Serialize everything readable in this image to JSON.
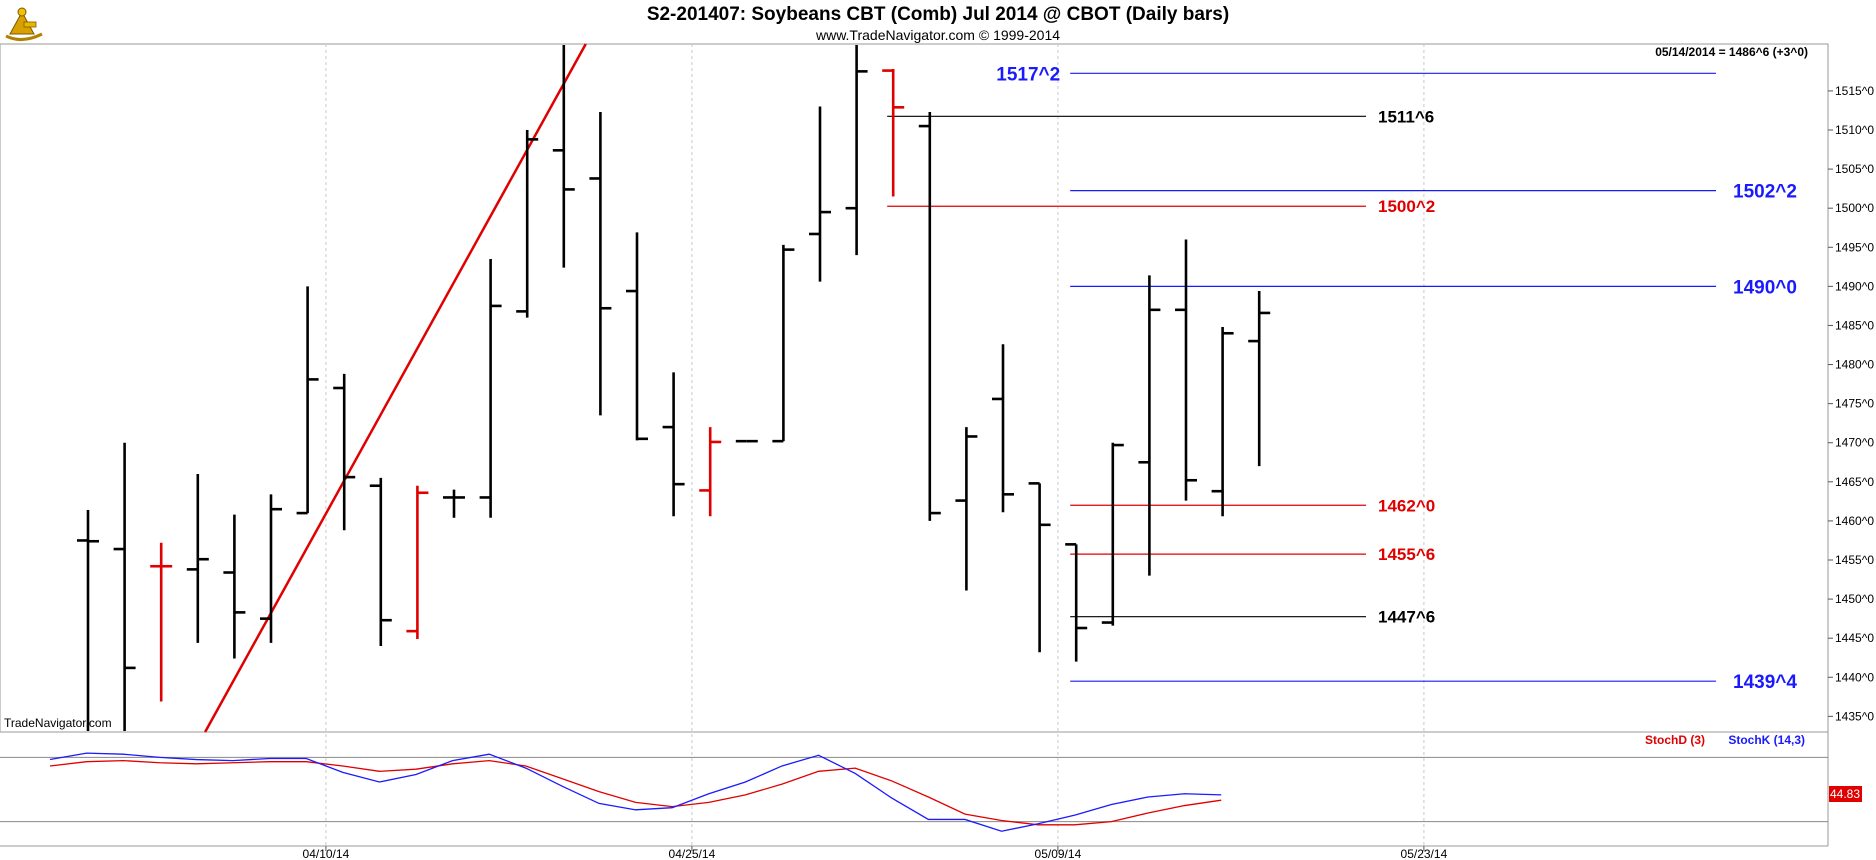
{
  "header": {
    "title": "S2-201407:  Soybeans CBT (Comb) Jul 2014 @ CBOT  (Daily bars)",
    "subtitle": "www.TradeNavigator.com © 1999-2014",
    "last_price_label": "05/14/2014 = 1486^6 (+3^0)",
    "watermark": "TradeNavigator.com",
    "logo": "trade-navigator-sextant-logo"
  },
  "colors": {
    "background": "#ffffff",
    "up_bar": "#000000",
    "down_bar": "#e00000",
    "blue_level": "#1a1aff",
    "red_level": "#e00000",
    "black_level": "#000000",
    "trendline": "#e00000",
    "stochK": "#1a1aff",
    "stochD": "#e00000",
    "grid": "#c8c8c8"
  },
  "chart_data": [
    {
      "type": "ohlc",
      "title": "S2-201407:  Soybeans CBT (Comb) Jul 2014 @ CBOT  (Daily bars)",
      "ylim": [
        1433,
        1521
      ],
      "y_ticks": [
        {
          "v": 1435,
          "label": "1435^0"
        },
        {
          "v": 1440,
          "label": "1440^0"
        },
        {
          "v": 1445,
          "label": "1445^0"
        },
        {
          "v": 1450,
          "label": "1450^0"
        },
        {
          "v": 1455,
          "label": "1455^0"
        },
        {
          "v": 1460,
          "label": "1460^0"
        },
        {
          "v": 1465,
          "label": "1465^0"
        },
        {
          "v": 1470,
          "label": "1470^0"
        },
        {
          "v": 1475,
          "label": "1475^0"
        },
        {
          "v": 1480,
          "label": "1480^0"
        },
        {
          "v": 1485,
          "label": "1485^0"
        },
        {
          "v": 1490,
          "label": "1490^0"
        },
        {
          "v": 1495,
          "label": "1495^0"
        },
        {
          "v": 1500,
          "label": "1500^0"
        },
        {
          "v": 1505,
          "label": "1505^0"
        },
        {
          "v": 1510,
          "label": "1510^0"
        },
        {
          "v": 1515,
          "label": "1515^0"
        }
      ],
      "x_labels": [
        {
          "i": 6.5,
          "label": "04/10/14"
        },
        {
          "i": 16.5,
          "label": "04/25/14"
        },
        {
          "i": 26.5,
          "label": "05/09/14"
        },
        {
          "i": 36.5,
          "label": "05/23/14"
        }
      ],
      "bars": [
        {
          "o": 1457.5,
          "h": 1461.4,
          "l": 1433.0,
          "c": 1457.4,
          "dir": "up"
        },
        {
          "o": 1456.4,
          "h": 1470.0,
          "l": 1433.0,
          "c": 1441.2,
          "dir": "up"
        },
        {
          "o": 1454.2,
          "h": 1457.2,
          "l": 1436.9,
          "c": 1454.2,
          "dir": "down"
        },
        {
          "o": 1453.8,
          "h": 1466.0,
          "l": 1444.4,
          "c": 1455.1,
          "dir": "up"
        },
        {
          "o": 1453.4,
          "h": 1460.8,
          "l": 1442.4,
          "c": 1448.3,
          "dir": "up"
        },
        {
          "o": 1447.5,
          "h": 1463.4,
          "l": 1444.4,
          "c": 1461.5,
          "dir": "up"
        },
        {
          "o": 1461.0,
          "h": 1490.0,
          "l": 1461.0,
          "c": 1478.1,
          "dir": "up"
        },
        {
          "o": 1477.0,
          "h": 1478.8,
          "l": 1458.8,
          "c": 1465.6,
          "dir": "up"
        },
        {
          "o": 1464.5,
          "h": 1465.5,
          "l": 1444.0,
          "c": 1447.3,
          "dir": "up"
        },
        {
          "o": 1445.9,
          "h": 1464.5,
          "l": 1444.9,
          "c": 1463.6,
          "dir": "down"
        },
        {
          "o": 1463.0,
          "h": 1464.0,
          "l": 1460.4,
          "c": 1463.0,
          "dir": "up"
        },
        {
          "o": 1463.0,
          "h": 1493.5,
          "l": 1460.4,
          "c": 1487.5,
          "dir": "up"
        },
        {
          "o": 1486.8,
          "h": 1510.0,
          "l": 1486.0,
          "c": 1508.8,
          "dir": "up"
        },
        {
          "o": 1507.4,
          "h": 1521.0,
          "l": 1492.4,
          "c": 1502.4,
          "dir": "up"
        },
        {
          "o": 1503.8,
          "h": 1512.3,
          "l": 1473.5,
          "c": 1487.2,
          "dir": "up"
        },
        {
          "o": 1489.4,
          "h": 1496.9,
          "l": 1470.3,
          "c": 1470.5,
          "dir": "up"
        },
        {
          "o": 1472.0,
          "h": 1479.0,
          "l": 1460.6,
          "c": 1464.7,
          "dir": "up"
        },
        {
          "o": 1463.9,
          "h": 1472.0,
          "l": 1460.6,
          "c": 1470.1,
          "dir": "down"
        },
        {
          "o": 1470.2,
          "h": 1470.2,
          "l": 1470.2,
          "c": 1470.2,
          "dir": "up"
        },
        {
          "o": 1470.2,
          "h": 1495.3,
          "l": 1470.2,
          "c": 1494.7,
          "dir": "up"
        },
        {
          "o": 1496.7,
          "h": 1513.0,
          "l": 1490.6,
          "c": 1499.5,
          "dir": "up"
        },
        {
          "o": 1500.0,
          "h": 1521.0,
          "l": 1494.0,
          "c": 1517.5,
          "dir": "up"
        },
        {
          "o": 1517.6,
          "h": 1517.8,
          "l": 1501.5,
          "c": 1512.9,
          "dir": "down"
        },
        {
          "o": 1510.5,
          "h": 1512.3,
          "l": 1460.0,
          "c": 1461.0,
          "dir": "up"
        },
        {
          "o": 1462.6,
          "h": 1472.0,
          "l": 1451.1,
          "c": 1470.8,
          "dir": "up"
        },
        {
          "o": 1475.6,
          "h": 1482.6,
          "l": 1461.1,
          "c": 1463.4,
          "dir": "up"
        },
        {
          "o": 1464.8,
          "h": 1464.8,
          "l": 1443.2,
          "c": 1459.5,
          "dir": "up"
        },
        {
          "o": 1457.0,
          "h": 1457.0,
          "l": 1442.0,
          "c": 1446.3,
          "dir": "up"
        },
        {
          "o": 1447.0,
          "h": 1470.0,
          "l": 1446.6,
          "c": 1469.7,
          "dir": "up"
        },
        {
          "o": 1467.5,
          "h": 1491.4,
          "l": 1453.0,
          "c": 1487.0,
          "dir": "up"
        },
        {
          "o": 1487.0,
          "h": 1496.0,
          "l": 1462.6,
          "c": 1465.2,
          "dir": "up"
        },
        {
          "o": 1463.8,
          "h": 1484.8,
          "l": 1460.6,
          "c": 1484.0,
          "dir": "up"
        },
        {
          "o": 1483.0,
          "h": 1489.4,
          "l": 1467.0,
          "c": 1486.6,
          "dir": "up"
        }
      ],
      "level_lines": [
        {
          "label": "1517^2",
          "price": 1517.25,
          "color": "blue",
          "from": 27,
          "to": 46,
          "label_side": "left",
          "big": true
        },
        {
          "label": "1511^6",
          "price": 1511.75,
          "color": "black",
          "from": 22,
          "to": 35,
          "label_side": "right",
          "big": false
        },
        {
          "label": "1502^2",
          "price": 1502.25,
          "color": "blue",
          "from": 27,
          "to": 46,
          "label_side": "end",
          "big": true
        },
        {
          "label": "1500^2",
          "price": 1500.25,
          "color": "red",
          "from": 22,
          "to": 35,
          "label_side": "right",
          "big": false
        },
        {
          "label": "1490^0",
          "price": 1490.0,
          "color": "blue",
          "from": 27,
          "to": 46,
          "label_side": "end",
          "big": true
        },
        {
          "label": "1462^0",
          "price": 1462.0,
          "color": "red",
          "from": 27,
          "to": 35,
          "label_side": "right",
          "big": false
        },
        {
          "label": "1455^6",
          "price": 1455.75,
          "color": "red",
          "from": 27,
          "to": 35,
          "label_side": "right",
          "big": false
        },
        {
          "label": "1447^6",
          "price": 1447.75,
          "color": "black",
          "from": 27,
          "to": 35,
          "label_side": "right",
          "big": false
        },
        {
          "label": "1439^4",
          "price": 1439.5,
          "color": "blue",
          "from": 27,
          "to": 46,
          "label_side": "end",
          "big": true
        }
      ],
      "trendline": {
        "from": {
          "i": 3.2,
          "p": 1433.0
        },
        "to": {
          "i": 13.6,
          "p": 1521.0
        }
      }
    },
    {
      "type": "line",
      "name": "stochastic",
      "ylim": [
        0,
        100
      ],
      "reference_lines": [
        80,
        20
      ],
      "series": [
        {
          "name": "StochD (3)",
          "color": "red",
          "values": [
            72,
            76,
            77,
            75,
            74,
            75,
            76,
            76,
            72,
            67,
            69,
            74,
            77,
            72,
            60,
            48,
            38,
            34,
            38,
            45,
            55,
            67,
            70,
            58,
            43,
            27,
            21,
            17,
            17,
            20,
            28,
            35,
            40
          ]
        },
        {
          "name": "StochK (14,3)",
          "color": "blue",
          "values": [
            78,
            84,
            83,
            80,
            78,
            77,
            79,
            79,
            66,
            57,
            64,
            77,
            83,
            70,
            53,
            37,
            31,
            33,
            46,
            57,
            72,
            82,
            65,
            42,
            22,
            22,
            11,
            18,
            26,
            36,
            43,
            46,
            45
          ]
        }
      ],
      "last_label": "44.83"
    }
  ]
}
